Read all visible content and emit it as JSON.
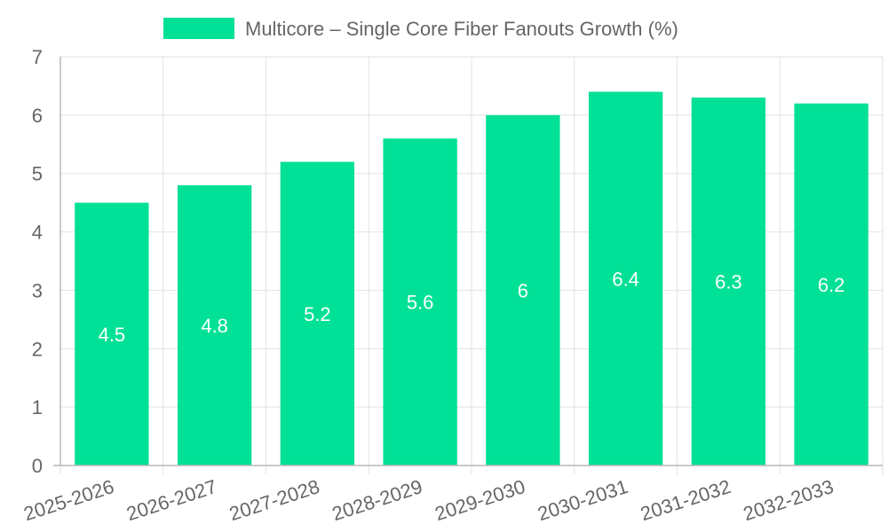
{
  "colors": {
    "bar": "#00E096",
    "grid": "#e2e2e2",
    "axis": "#b8b8b8",
    "text": "#666666",
    "label": "#ffffff"
  },
  "chart_data": {
    "type": "bar",
    "categories": [
      "2025-2026",
      "2026-2027",
      "2027-2028",
      "2028-2029",
      "2029-2030",
      "2030-2031",
      "2031-2032",
      "2032-2033"
    ],
    "series": [
      {
        "name": "Multicore – Single Core Fiber Fanouts Growth (%)",
        "values": [
          4.5,
          4.8,
          5.2,
          5.6,
          6,
          6.4,
          6.3,
          6.2
        ]
      }
    ],
    "ylim": [
      0,
      7
    ],
    "yticks": [
      0,
      1,
      2,
      3,
      4,
      5,
      6,
      7
    ],
    "grid": true,
    "legend": "top-center",
    "data_labels": true
  }
}
